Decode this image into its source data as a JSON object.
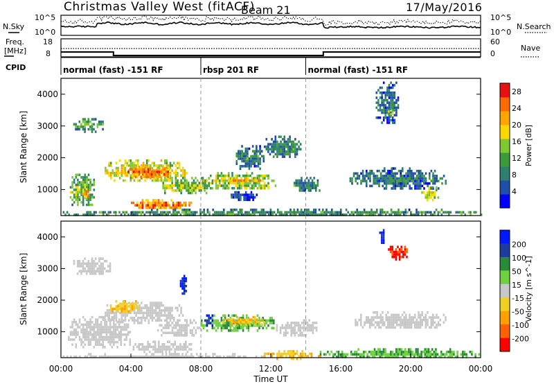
{
  "header": {
    "title": "Christmas Valley West (fitACF)",
    "beam": "Beam 21",
    "date": "17/May/2016"
  },
  "status_panels": {
    "nsky_label": "N.Sky",
    "nsearch_label": "N.Search",
    "noise_ticks": [
      "10^5",
      "10^0"
    ],
    "freq_label_line1": "Freq.",
    "freq_label_line2": "[MHz]",
    "freq_ticks": [
      "18",
      "8"
    ],
    "nave_label": "Nave",
    "nave_ticks": [
      "60",
      "0"
    ],
    "cpid_label": "CPID",
    "cpid_segments": [
      {
        "label": "normal (fast) -151 RF",
        "start_hour": 0,
        "end_hour": 8
      },
      {
        "label": "rbsp 201 RF",
        "start_hour": 8,
        "end_hour": 14
      },
      {
        "label": "normal (fast) -151 RF",
        "start_hour": 14,
        "end_hour": 24
      }
    ],
    "freq_mhz": [
      {
        "start_hour": 0,
        "end_hour": 3,
        "value": 10.5
      },
      {
        "start_hour": 3,
        "end_hour": 15,
        "value": 8.4
      },
      {
        "start_hour": 15,
        "end_hour": 24,
        "value": 10.5
      }
    ]
  },
  "colors": {
    "power_scale": [
      "#0000ff",
      "#1f4fa8",
      "#2f7f6f",
      "#3c9a3c",
      "#7fc832",
      "#ffd700",
      "#ffa500",
      "#ff6a00",
      "#e81010"
    ],
    "velocity_scale": [
      "#0018ff",
      "#1e3ca0",
      "#2a8a3a",
      "#6fd040",
      "#c8c8c8",
      "#f0d020",
      "#ffa000",
      "#ff6000",
      "#ff0000"
    ],
    "ground_scatter": "#c8c8c8"
  },
  "chart_data": [
    {
      "type": "heatmap",
      "name": "power",
      "xlabel": "",
      "ylabel": "Slant Range [km]",
      "xlim_hours": [
        0,
        24
      ],
      "ylim_km": [
        180,
        4500
      ],
      "yticks": [
        "1000",
        "2000",
        "3000",
        "4000"
      ],
      "colorbar_label": "Power [dB]",
      "colorbar_ticks": [
        "4",
        "8",
        "12",
        "16",
        "20",
        "24",
        "28"
      ],
      "colorbar_range": [
        0,
        30
      ],
      "regions": [
        {
          "t0": 0.4,
          "t1": 1.9,
          "r0": 550,
          "r1": 1500,
          "level": 0.45
        },
        {
          "t0": 1.2,
          "t1": 1.6,
          "r0": 700,
          "r1": 1050,
          "level": 0.8
        },
        {
          "t0": 0.7,
          "t1": 2.4,
          "r0": 2850,
          "r1": 3250,
          "level": 0.4
        },
        {
          "t0": 2.5,
          "t1": 7.2,
          "r0": 1300,
          "r1": 1950,
          "level": 0.65
        },
        {
          "t0": 3.6,
          "t1": 6.2,
          "r0": 1400,
          "r1": 1750,
          "level": 0.85
        },
        {
          "t0": 4.0,
          "t1": 7.5,
          "r0": 400,
          "r1": 700,
          "level": 0.85
        },
        {
          "t0": 5.8,
          "t1": 8.3,
          "r0": 880,
          "r1": 1400,
          "level": 0.5
        },
        {
          "t0": 8.0,
          "t1": 12.3,
          "r0": 1050,
          "r1": 1550,
          "level": 0.55
        },
        {
          "t0": 9.4,
          "t1": 11.5,
          "r0": 1250,
          "r1": 1400,
          "level": 0.75
        },
        {
          "t0": 9.5,
          "t1": 11.2,
          "r0": 700,
          "r1": 950,
          "level": 0.2
        },
        {
          "t0": 10.0,
          "t1": 11.6,
          "r0": 1650,
          "r1": 2400,
          "level": 0.3
        },
        {
          "t0": 11.6,
          "t1": 13.7,
          "r0": 2000,
          "r1": 2700,
          "level": 0.3
        },
        {
          "t0": 13.3,
          "t1": 14.8,
          "r0": 950,
          "r1": 1400,
          "level": 0.3
        },
        {
          "t0": 16.5,
          "t1": 22.0,
          "r0": 1050,
          "r1": 1700,
          "level": 0.25
        },
        {
          "t0": 20.6,
          "t1": 21.6,
          "r0": 700,
          "r1": 1100,
          "level": 0.6
        },
        {
          "t0": 18.0,
          "t1": 19.3,
          "r0": 3100,
          "r1": 4400,
          "level": 0.25
        },
        {
          "t0": 18.7,
          "t1": 19.0,
          "r0": 3300,
          "r1": 3650,
          "level": 0.55
        },
        {
          "t0": 0.0,
          "t1": 24.0,
          "r0": 180,
          "r1": 400,
          "level": 0.35
        }
      ]
    },
    {
      "type": "heatmap",
      "name": "velocity",
      "xlabel": "Time UT",
      "ylabel": "Slant Range [km]",
      "xlim_hours": [
        0,
        24
      ],
      "ylim_km": [
        180,
        4500
      ],
      "xticks": [
        "00:00",
        "04:00",
        "08:00",
        "12:00",
        "16:00",
        "20:00",
        "00:00"
      ],
      "yticks": [
        "1000",
        "2000",
        "3000",
        "4000"
      ],
      "colorbar_label": "Velocity [m s^-1]",
      "colorbar_ticks": [
        "200",
        "100",
        "50",
        "15",
        "-15",
        "-50",
        "-100",
        "-200"
      ],
      "regions": [
        {
          "t0": 0.4,
          "t1": 4.0,
          "r0": 550,
          "r1": 1500,
          "kind": "gs"
        },
        {
          "t0": 0.7,
          "t1": 2.8,
          "r0": 2800,
          "r1": 3350,
          "kind": "gs"
        },
        {
          "t0": 2.5,
          "t1": 7.0,
          "r0": 1300,
          "r1": 1950,
          "kind": "gs"
        },
        {
          "t0": 2.8,
          "t1": 4.5,
          "r0": 1650,
          "r1": 2000,
          "kind": "orange"
        },
        {
          "t0": 4.0,
          "t1": 7.5,
          "r0": 380,
          "r1": 720,
          "kind": "gs"
        },
        {
          "t0": 5.5,
          "t1": 8.0,
          "r0": 880,
          "r1": 1400,
          "kind": "gs"
        },
        {
          "t0": 6.8,
          "t1": 7.2,
          "r0": 2200,
          "r1": 2800,
          "kind": "blue"
        },
        {
          "t0": 8.0,
          "t1": 12.2,
          "r0": 1050,
          "r1": 1550,
          "kind": "green"
        },
        {
          "t0": 9.2,
          "t1": 11.6,
          "r0": 1250,
          "r1": 1500,
          "kind": "orange"
        },
        {
          "t0": 8.2,
          "t1": 8.7,
          "r0": 1200,
          "r1": 1550,
          "kind": "blue"
        },
        {
          "t0": 12.3,
          "t1": 14.6,
          "r0": 900,
          "r1": 1400,
          "kind": "gs"
        },
        {
          "t0": 16.8,
          "t1": 22.0,
          "r0": 1100,
          "r1": 1650,
          "kind": "gs"
        },
        {
          "t0": 18.7,
          "t1": 19.8,
          "r0": 3300,
          "r1": 3800,
          "kind": "red"
        },
        {
          "t0": 18.2,
          "t1": 18.5,
          "r0": 3800,
          "r1": 4250,
          "kind": "blue"
        },
        {
          "t0": 11.6,
          "t1": 14.8,
          "r0": 180,
          "r1": 420,
          "kind": "orange"
        },
        {
          "t0": 14.8,
          "t1": 24.0,
          "r0": 180,
          "r1": 480,
          "kind": "green"
        },
        {
          "t0": 0.0,
          "t1": 11.6,
          "r0": 180,
          "r1": 330,
          "kind": "gs"
        }
      ]
    }
  ]
}
